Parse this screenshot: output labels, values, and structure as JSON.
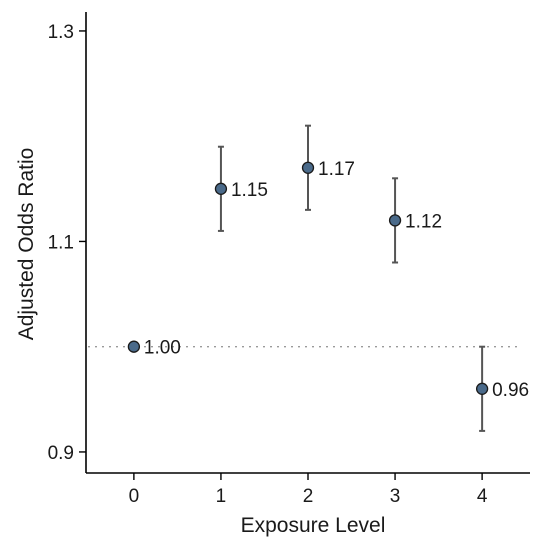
{
  "chart_data": {
    "type": "scatter",
    "title": "",
    "xlabel": "Exposure Level",
    "ylabel": "Adjusted Odds Ratio",
    "xlim": [
      -0.55,
      4.55
    ],
    "ylim": [
      0.88,
      1.318
    ],
    "x_ticks": [
      0,
      1,
      2,
      3,
      4
    ],
    "y_ticks": [
      0.9,
      1.1,
      1.3
    ],
    "y_tick_labels": [
      "0.9",
      "1.1",
      "1.3"
    ],
    "reference_line": 1.0,
    "points": [
      {
        "x": 0,
        "y": 1.0,
        "lower": null,
        "upper": null,
        "label": "1.00"
      },
      {
        "x": 1,
        "y": 1.15,
        "lower": 1.11,
        "upper": 1.19,
        "label": "1.15"
      },
      {
        "x": 2,
        "y": 1.17,
        "lower": 1.13,
        "upper": 1.21,
        "label": "1.17"
      },
      {
        "x": 3,
        "y": 1.12,
        "lower": 1.08,
        "upper": 1.16,
        "label": "1.12"
      },
      {
        "x": 4,
        "y": 0.96,
        "lower": 0.92,
        "upper": 1.0,
        "label": "0.96"
      }
    ],
    "point_color": "#4a6a8a",
    "grid": false,
    "legend": "none"
  }
}
